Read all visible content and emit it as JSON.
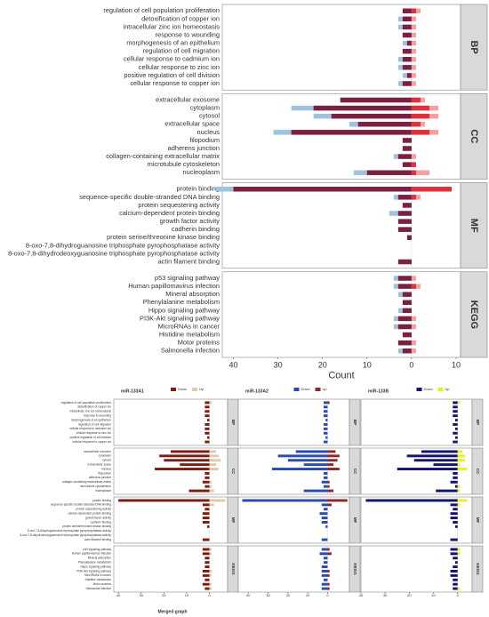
{
  "chart_data": [
    {
      "type": "bar",
      "xlabel": "Count",
      "facets": [
        {
          "label": "BP",
          "categories": [
            "regulation of cell population proliferation",
            "detoxification of copper ion",
            "intracellular zinc ion homeostasis",
            "response to wounding",
            "morphogenesis of an epithelium",
            "regulation of cell migration",
            "cellular response to cadmium ion",
            "cellular response to zinc ion",
            "positive regulation of cell division",
            "cellular response to copper ion"
          ]
        },
        {
          "label": "CC",
          "categories": [
            "extracellular exosome",
            "cytoplasm",
            "cytosol",
            "extracellular space",
            "nucleus",
            "filopodium",
            "adherens junction",
            "collagen-containing extracellular matrix",
            "microtubule cytoskeleton",
            "nucleoplasm"
          ]
        },
        {
          "label": "MF",
          "categories": [
            "protein binding",
            "sequence-specific double-stranded DNA binding",
            "protein sequestering activity",
            "calcium-dependent protein binding",
            "growth factor activity",
            "cadherin binding",
            "protein serine/threonine kinase binding",
            "8-oxo-7,8-dihydroguanosine triphosphate pyrophosphatase activity",
            "8-oxo-7,8-dihydrodeoxyguanosine triphosphate pyrophosphatase activity",
            "actin filament binding"
          ]
        },
        {
          "label": "KEGG",
          "categories": [
            "p53 signaling pathway",
            "Human papillomavirus infection",
            "Mineral absorption",
            "Phenylalanine metabolism",
            "Hippo signaling pathway",
            "PI3K-Akt signaling pathway",
            "MicroRNAs in cancer",
            "Histidine metabolism",
            "Motor proteins",
            "Salmonella infection"
          ]
        }
      ],
      "series": [
        {
          "color": "#9ec3de",
          "values": [
            -2,
            -3,
            -3,
            -2,
            -2,
            -2,
            -3,
            -3,
            -2,
            -3,
            -16,
            -27,
            -22,
            -14,
            -31,
            -2,
            -2,
            -4,
            -2,
            -13,
            -44,
            -4,
            -2,
            -5,
            -3,
            -3,
            -1,
            0,
            0,
            -3,
            -4,
            -4,
            -3,
            -2,
            -3,
            -4,
            -4,
            -2,
            -3,
            -3
          ]
        },
        {
          "color": "#7b2040",
          "values": [
            -2,
            -2,
            -2,
            -2,
            -1,
            -2,
            -2,
            -2,
            -1,
            -2,
            -16,
            -22,
            -18,
            -12,
            -27,
            -2,
            -2,
            -3,
            -2,
            -10,
            -40,
            -3,
            -2,
            -3,
            -3,
            -3,
            -1,
            0,
            0,
            -3,
            -3,
            -3,
            -2,
            -2,
            -2,
            -3,
            -3,
            -2,
            -3,
            -2
          ]
        },
        {
          "color": "#f4a0a0",
          "values": [
            2,
            1,
            1,
            1,
            1,
            1,
            1,
            1,
            1,
            1,
            3,
            6,
            6,
            3,
            6,
            0,
            0,
            1,
            1,
            4,
            7,
            2,
            0,
            0,
            0,
            0,
            0,
            0,
            0,
            0,
            1,
            2,
            0,
            0,
            0,
            1,
            1,
            0,
            1,
            1
          ]
        },
        {
          "color": "#e0303a",
          "values": [
            1,
            0,
            0,
            0,
            0,
            0,
            0,
            0,
            0,
            0,
            2,
            4,
            4,
            2,
            4,
            0,
            0,
            0,
            1,
            1,
            9,
            1,
            0,
            0,
            0,
            0,
            0,
            0,
            0,
            0,
            0,
            1,
            0,
            0,
            0,
            0,
            0,
            0,
            0,
            0
          ]
        }
      ],
      "xlim": [
        -42.5,
        11
      ],
      "xticks": [
        {
          "value": -40,
          "label": "40"
        },
        {
          "value": -30,
          "label": "30"
        },
        {
          "value": -20,
          "label": "20"
        },
        {
          "value": -10,
          "label": "10"
        },
        0,
        10
      ]
    },
    {
      "type": "bar",
      "title": "miR-133A1",
      "series": [
        {
          "name": "Down",
          "color": "#7a1f12",
          "values": [
            -2,
            -2,
            -2,
            -2,
            -1,
            -2,
            -2,
            -2,
            -1,
            -2,
            -17,
            -22,
            -20,
            -13,
            -24,
            -2,
            -2,
            -3,
            -2,
            -9,
            -40,
            -3,
            -2,
            -3,
            -3,
            -3,
            -1,
            0,
            0,
            -3,
            -3,
            -3,
            -2,
            -2,
            -2,
            -3,
            -3,
            -2,
            -3,
            -2
          ]
        },
        {
          "name": "Up",
          "color": "#e3c9a8",
          "values": [
            1,
            0,
            0,
            0,
            0,
            0,
            0,
            0,
            0,
            0,
            3,
            4,
            5,
            3,
            4,
            0,
            0,
            1,
            1,
            2,
            7,
            2,
            0,
            0,
            0,
            0,
            0,
            0,
            0,
            0,
            1,
            1,
            0,
            0,
            0,
            1,
            1,
            0,
            1,
            1
          ]
        }
      ],
      "xlim": [
        -42,
        8
      ],
      "xticks": [
        {
          "value": -40,
          "label": "40"
        },
        {
          "value": -30,
          "label": "30"
        },
        {
          "value": -20,
          "label": "20"
        },
        {
          "value": -10,
          "label": "10"
        },
        0
      ]
    },
    {
      "type": "bar",
      "title": "miR-133A2",
      "series": [
        {
          "name": "Down",
          "color": "#2a4bb0",
          "values": [
            -2,
            -2,
            -2,
            -2,
            -1,
            -2,
            -2,
            -2,
            -1,
            -2,
            -16,
            -25,
            -20,
            -12,
            -28,
            -2,
            -2,
            -3,
            -2,
            -12,
            -43,
            -3,
            -2,
            -4,
            -3,
            -3,
            -1,
            0,
            0,
            -3,
            -3,
            -4,
            -2,
            -2,
            -3,
            -3,
            -3,
            -2,
            -3,
            -3
          ]
        },
        {
          "name": "Up",
          "color": "#8c2a2a",
          "values": [
            1,
            0,
            0,
            0,
            0,
            0,
            0,
            0,
            0,
            0,
            4,
            6,
            5,
            3,
            6,
            0,
            0,
            1,
            1,
            3,
            10,
            2,
            0,
            0,
            0,
            0,
            0,
            0,
            0,
            0,
            1,
            2,
            0,
            0,
            0,
            1,
            1,
            0,
            1,
            1
          ]
        }
      ],
      "xlim": [
        -45,
        11
      ],
      "xticks": [
        {
          "value": -40,
          "label": "40"
        },
        {
          "value": -30,
          "label": "30"
        },
        {
          "value": -20,
          "label": "20"
        },
        {
          "value": -10,
          "label": "10"
        },
        0
      ]
    },
    {
      "type": "bar",
      "title": "miR-133B",
      "series": [
        {
          "name": "Down",
          "color": "#141470",
          "values": [
            -2,
            -2,
            -2,
            -2,
            -1,
            -2,
            -1,
            -2,
            -1,
            -2,
            -15,
            -21,
            -18,
            -10,
            -25,
            -2,
            -2,
            -3,
            -1,
            -9,
            -38,
            -3,
            -2,
            -3,
            -3,
            -2,
            -1,
            0,
            0,
            -3,
            -3,
            -3,
            -2,
            -1,
            -2,
            -3,
            -3,
            -2,
            -2,
            -2
          ]
        },
        {
          "name": "Up",
          "color": "#e8f020",
          "values": [
            1,
            0,
            0,
            0,
            0,
            0,
            0,
            0,
            0,
            0,
            2,
            3,
            3,
            1,
            4,
            0,
            0,
            0,
            1,
            1,
            4,
            1,
            0,
            0,
            0,
            0,
            0,
            0,
            0,
            0,
            1,
            1,
            0,
            0,
            0,
            0,
            0,
            0,
            0,
            1
          ]
        }
      ],
      "xlim": [
        -40,
        6
      ],
      "xticks": [
        {
          "value": -40,
          "label": "40"
        },
        {
          "value": -30,
          "label": "30"
        },
        {
          "value": -20,
          "label": "20"
        },
        {
          "value": -10,
          "label": "10"
        },
        0
      ]
    }
  ],
  "caption": "Merged graph"
}
